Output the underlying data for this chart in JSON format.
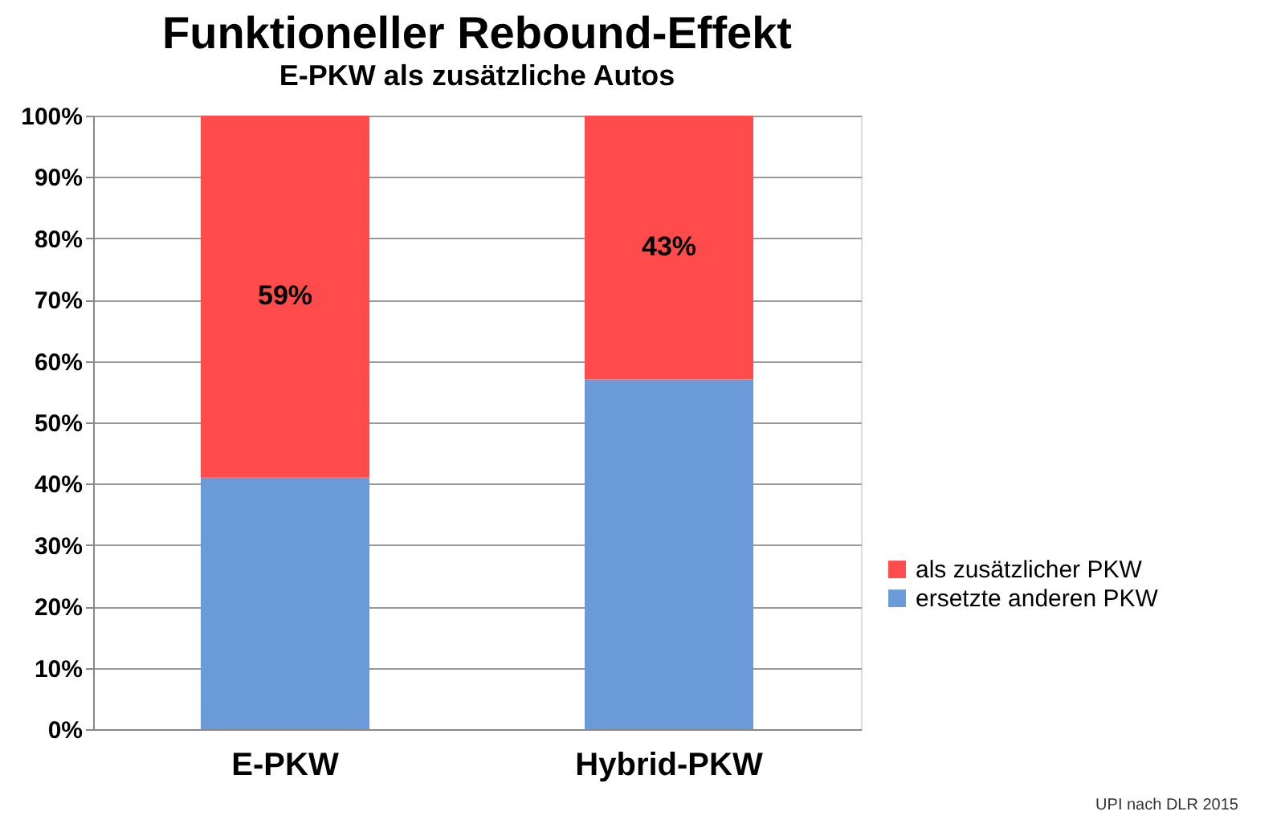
{
  "chart_data": {
    "type": "bar",
    "title": "Funktioneller Rebound-Effekt",
    "subtitle": "E-PKW als zusätzliche Autos",
    "categories": [
      "E-PKW",
      "Hybrid-PKW"
    ],
    "stacked": true,
    "series": [
      {
        "name": "ersetzte anderen PKW",
        "color": "#6a9bd8",
        "values": [
          41,
          57
        ]
      },
      {
        "name": "als zusätzlicher PKW",
        "color": "#ff4b4b",
        "values": [
          59,
          43
        ],
        "value_labels": [
          "59%",
          "43%"
        ]
      }
    ],
    "ylim": [
      0,
      100
    ],
    "yticks": [
      {
        "value": 0,
        "label": "0%"
      },
      {
        "value": 10,
        "label": "10%"
      },
      {
        "value": 20,
        "label": "20%"
      },
      {
        "value": 30,
        "label": "30%"
      },
      {
        "value": 40,
        "label": "40%"
      },
      {
        "value": 50,
        "label": "50%"
      },
      {
        "value": 60,
        "label": "60%"
      },
      {
        "value": 70,
        "label": "70%"
      },
      {
        "value": 80,
        "label": "80%"
      },
      {
        "value": 90,
        "label": "90%"
      },
      {
        "value": 100,
        "label": "100%"
      }
    ],
    "grid": "y",
    "legend": "right",
    "annotations": [
      "UPI nach DLR 2015"
    ]
  }
}
